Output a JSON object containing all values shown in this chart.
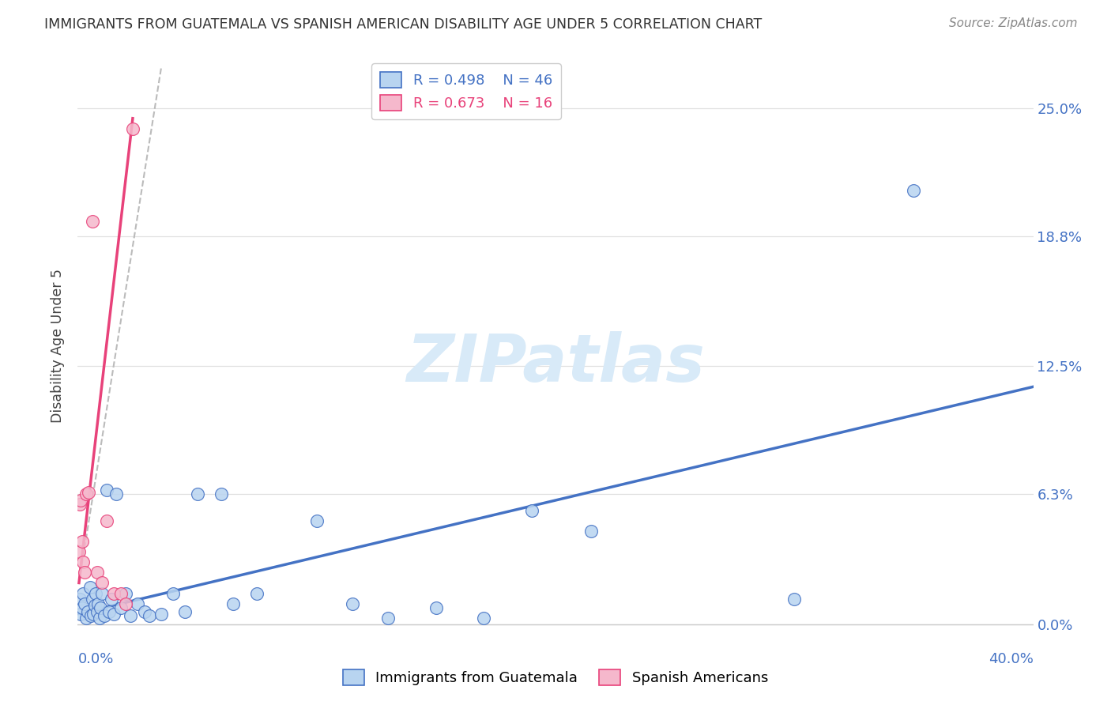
{
  "title": "IMMIGRANTS FROM GUATEMALA VS SPANISH AMERICAN DISABILITY AGE UNDER 5 CORRELATION CHART",
  "source": "Source: ZipAtlas.com",
  "ylabel": "Disability Age Under 5",
  "ytick_labels": [
    "0.0%",
    "6.3%",
    "12.5%",
    "18.8%",
    "25.0%"
  ],
  "ytick_values": [
    0.0,
    6.3,
    12.5,
    18.8,
    25.0
  ],
  "xlim": [
    0.0,
    40.0
  ],
  "ylim": [
    -0.5,
    27.5
  ],
  "legend_blue_r": "0.498",
  "legend_blue_n": "46",
  "legend_pink_r": "0.673",
  "legend_pink_n": "16",
  "blue_face": "#b8d4f0",
  "blue_edge": "#4472C4",
  "pink_face": "#f5b8cc",
  "pink_edge": "#E8427A",
  "blue_line": "#4472C4",
  "pink_line": "#E8427A",
  "blue_scatter_x": [
    0.08,
    0.12,
    0.18,
    0.22,
    0.28,
    0.35,
    0.42,
    0.5,
    0.55,
    0.6,
    0.65,
    0.7,
    0.75,
    0.8,
    0.85,
    0.9,
    0.95,
    1.0,
    1.1,
    1.2,
    1.3,
    1.4,
    1.5,
    1.6,
    1.8,
    2.0,
    2.2,
    2.5,
    2.8,
    3.0,
    3.5,
    4.0,
    4.5,
    5.0,
    6.0,
    6.5,
    7.5,
    10.0,
    11.5,
    13.0,
    15.0,
    17.0,
    19.0,
    21.5,
    30.0,
    35.0
  ],
  "blue_scatter_y": [
    1.2,
    0.5,
    0.8,
    1.5,
    1.0,
    0.3,
    0.6,
    1.8,
    0.4,
    1.2,
    0.5,
    0.9,
    1.5,
    0.6,
    1.0,
    0.3,
    0.8,
    1.5,
    0.4,
    6.5,
    0.6,
    1.2,
    0.5,
    6.3,
    0.8,
    1.5,
    0.4,
    1.0,
    0.6,
    0.4,
    0.5,
    1.5,
    0.6,
    6.3,
    6.3,
    1.0,
    1.5,
    5.0,
    1.0,
    0.3,
    0.8,
    0.3,
    5.5,
    4.5,
    1.2,
    21.0
  ],
  "pink_scatter_x": [
    0.05,
    0.08,
    0.12,
    0.18,
    0.22,
    0.28,
    0.35,
    0.45,
    0.6,
    0.8,
    1.0,
    1.2,
    1.5,
    1.8,
    2.0,
    2.3
  ],
  "pink_scatter_y": [
    3.5,
    5.8,
    6.0,
    4.0,
    3.0,
    2.5,
    6.3,
    6.4,
    19.5,
    2.5,
    2.0,
    5.0,
    1.5,
    1.5,
    1.0,
    24.0
  ],
  "blue_trend_x0": 0.0,
  "blue_trend_x1": 40.0,
  "blue_trend_y0": 0.5,
  "blue_trend_y1": 11.5,
  "pink_trend_x0": 0.05,
  "pink_trend_x1": 2.3,
  "pink_trend_y0": 2.0,
  "pink_trend_y1": 24.5,
  "pink_dash_x0": 0.05,
  "pink_dash_x1": 3.5,
  "pink_dash_y0": 2.0,
  "pink_dash_y1": 27.0,
  "watermark": "ZIPatlas",
  "watermark_color": "#d8eaf8"
}
